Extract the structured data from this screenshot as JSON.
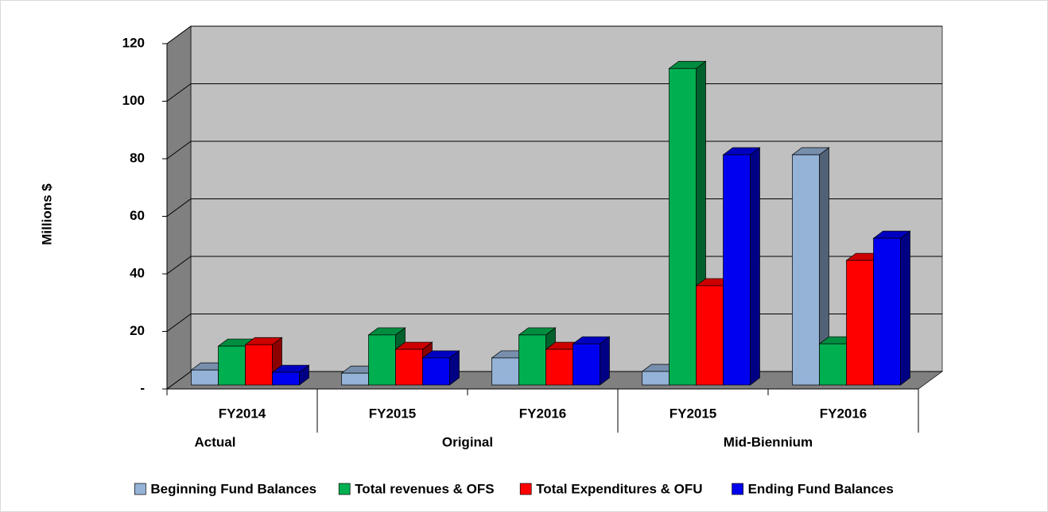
{
  "chart_data": {
    "type": "bar3d",
    "y_label": "Millions $",
    "categories": [
      "FY2014",
      "FY2015",
      "FY2016",
      "FY2015",
      "FY2016"
    ],
    "groups": [
      {
        "label": "Actual",
        "span": [
          0,
          0
        ]
      },
      {
        "label": "Original",
        "span": [
          1,
          2
        ]
      },
      {
        "label": "Mid-Biennium",
        "span": [
          3,
          4
        ]
      }
    ],
    "series": [
      {
        "name": "Beginning Fund Balances",
        "color": "#95b3d7",
        "values": [
          5.2,
          4.1,
          9.4,
          4.7,
          80
        ]
      },
      {
        "name": "Total revenues & OFS",
        "color": "#00b050",
        "values": [
          13.5,
          17.4,
          17.4,
          110,
          14.3
        ]
      },
      {
        "name": "Total Expenditures & OFU",
        "color": "#ff0000",
        "values": [
          14,
          12.4,
          12.4,
          34.5,
          43.3
        ]
      },
      {
        "name": "Ending Fund Balances",
        "color": "#0000f0",
        "values": [
          4.4,
          9.4,
          14.3,
          80,
          51
        ]
      }
    ],
    "ylim": [
      0,
      120
    ],
    "yticks": [
      {
        "value": 0,
        "label": "-"
      },
      20,
      40,
      60,
      80,
      100,
      120
    ],
    "grid": true,
    "legend": "bottom"
  }
}
